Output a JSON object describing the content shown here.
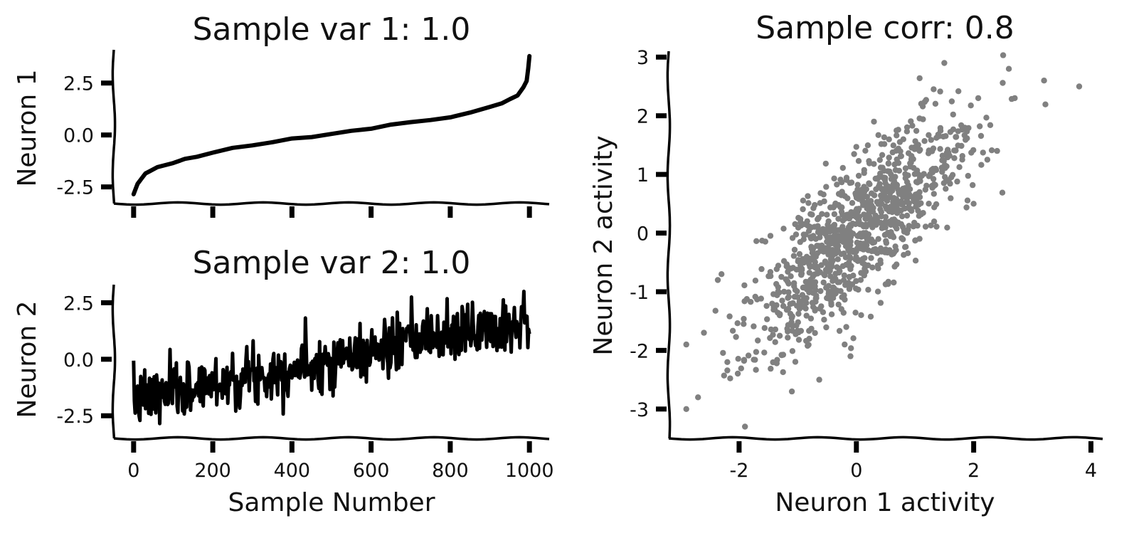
{
  "chart_data": [
    {
      "type": "line",
      "title": "Sample var 1: 1.0",
      "xlabel": "",
      "ylabel": "Neuron 1",
      "xlim": [
        -50,
        1050
      ],
      "ylim": [
        -3.3,
        4.1
      ],
      "xticks": [
        0,
        200,
        400,
        600,
        800,
        1000
      ],
      "show_xtick_labels": false,
      "yticks": [
        -2.5,
        0.0,
        2.5
      ],
      "ytick_labels": [
        "-2.5",
        "0.0",
        "2.5"
      ],
      "grid": false,
      "line_color": "#000000",
      "series": [
        {
          "x": [
            0,
            5,
            10,
            20,
            30,
            40,
            60,
            80,
            100,
            130,
            160,
            200,
            250,
            300,
            350,
            400,
            450,
            500,
            550,
            600,
            650,
            700,
            750,
            800,
            850,
            900,
            930,
            950,
            970,
            985,
            993,
            997,
            1000
          ],
          "y": [
            -2.85,
            -2.6,
            -2.35,
            -2.1,
            -1.85,
            -1.75,
            -1.55,
            -1.45,
            -1.35,
            -1.15,
            -1.05,
            -0.85,
            -0.62,
            -0.5,
            -0.35,
            -0.17,
            -0.1,
            0.05,
            0.2,
            0.3,
            0.5,
            0.62,
            0.72,
            0.85,
            1.08,
            1.35,
            1.52,
            1.72,
            1.9,
            2.3,
            2.6,
            3.2,
            3.8
          ]
        }
      ]
    },
    {
      "type": "line",
      "title": "Sample var 2: 1.0",
      "xlabel": "Sample Number",
      "ylabel": "Neuron 2",
      "xlim": [
        -50,
        1050
      ],
      "ylim": [
        -3.5,
        3.3
      ],
      "xticks": [
        0,
        200,
        400,
        600,
        800,
        1000
      ],
      "xtick_labels": [
        "0",
        "200",
        "400",
        "600",
        "800",
        "1000"
      ],
      "yticks": [
        -2.5,
        0.0,
        2.5
      ],
      "ytick_labels": [
        "-2.5",
        "0.0",
        "2.5"
      ],
      "grid": false,
      "line_color": "#000000",
      "trend": {
        "start": [
          0,
          -1.8
        ],
        "end": [
          1000,
          1.8
        ]
      },
      "noise_amplitude": 0.9,
      "n_samples": 1000
    },
    {
      "type": "scatter",
      "title": "Sample corr: 0.8",
      "xlabel": "Neuron 1 activity",
      "ylabel": "Neuron 2 activity",
      "xlim": [
        -3.2,
        4.2
      ],
      "ylim": [
        -3.5,
        3.1
      ],
      "xticks": [
        -2,
        0,
        2,
        4
      ],
      "xtick_labels": [
        "-2",
        "0",
        "2",
        "4"
      ],
      "yticks": [
        -3,
        -2,
        -1,
        0,
        1,
        2,
        3
      ],
      "ytick_labels": [
        "-3",
        "-2",
        "-1",
        "0",
        "1",
        "2",
        "3"
      ],
      "grid": false,
      "point_color": "#808080",
      "correlation": 0.8,
      "n_points": 1000,
      "outlier_points": [
        [
          -2.9,
          -3.0
        ],
        [
          -2.9,
          -1.9
        ],
        [
          -2.7,
          -2.8
        ],
        [
          -2.6,
          -1.7
        ],
        [
          -2.3,
          -0.7
        ],
        [
          -2.2,
          -2.2
        ],
        [
          -1.9,
          -3.3
        ],
        [
          -1.1,
          -2.7
        ],
        [
          -0.1,
          -2.1
        ],
        [
          3.2,
          2.6
        ],
        [
          3.8,
          2.5
        ],
        [
          1.5,
          2.9
        ],
        [
          2.6,
          2.8
        ],
        [
          2.7,
          2.3
        ],
        [
          0.3,
          1.9
        ],
        [
          2.0,
          0.5
        ],
        [
          -0.2,
          -1.9
        ],
        [
          2.4,
          1.4
        ]
      ]
    }
  ]
}
